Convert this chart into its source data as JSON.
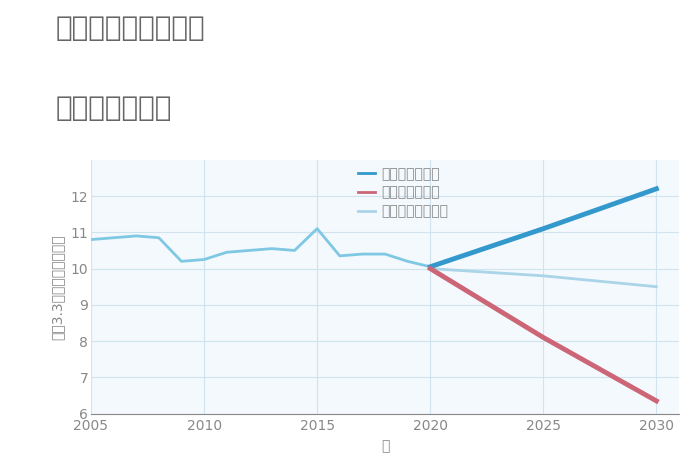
{
  "title_line1": "千葉県市原市本郷の",
  "title_line2": "土地の価格推移",
  "xlabel": "年",
  "ylabel": "坪（3.3㎡）単価（万円）",
  "ylim": [
    6,
    13
  ],
  "yticks": [
    6,
    7,
    8,
    9,
    10,
    11,
    12
  ],
  "xlim": [
    2005,
    2031
  ],
  "xticks": [
    2005,
    2010,
    2015,
    2020,
    2025,
    2030
  ],
  "historical": {
    "years": [
      2005,
      2006,
      2007,
      2008,
      2009,
      2010,
      2011,
      2012,
      2013,
      2014,
      2015,
      2016,
      2017,
      2018,
      2019,
      2020
    ],
    "values": [
      10.8,
      10.85,
      10.9,
      10.85,
      10.2,
      10.25,
      10.45,
      10.5,
      10.55,
      10.5,
      11.1,
      10.35,
      10.4,
      10.4,
      10.2,
      10.05
    ],
    "color": "#7ec8e3",
    "linewidth": 2.0
  },
  "good": {
    "years": [
      2020,
      2025,
      2030
    ],
    "values": [
      10.05,
      11.1,
      12.2
    ],
    "color": "#3399cc",
    "linewidth": 3.5,
    "label": "グッドシナリオ"
  },
  "bad": {
    "years": [
      2020,
      2025,
      2030
    ],
    "values": [
      10.0,
      8.1,
      6.35
    ],
    "color": "#cc6677",
    "linewidth": 3.5,
    "label": "バッドシナリオ"
  },
  "normal": {
    "years": [
      2020,
      2025,
      2030
    ],
    "values": [
      10.0,
      9.8,
      9.5
    ],
    "color": "#aad4e8",
    "linewidth": 2.0,
    "label": "ノーマルシナリオ"
  },
  "grid_color": "#d0e4f0",
  "bg_color": "#f4f9fd",
  "title_color": "#666666",
  "axis_color": "#888888",
  "title_fontsize": 20,
  "label_fontsize": 10,
  "tick_fontsize": 10,
  "legend_fontsize": 10
}
